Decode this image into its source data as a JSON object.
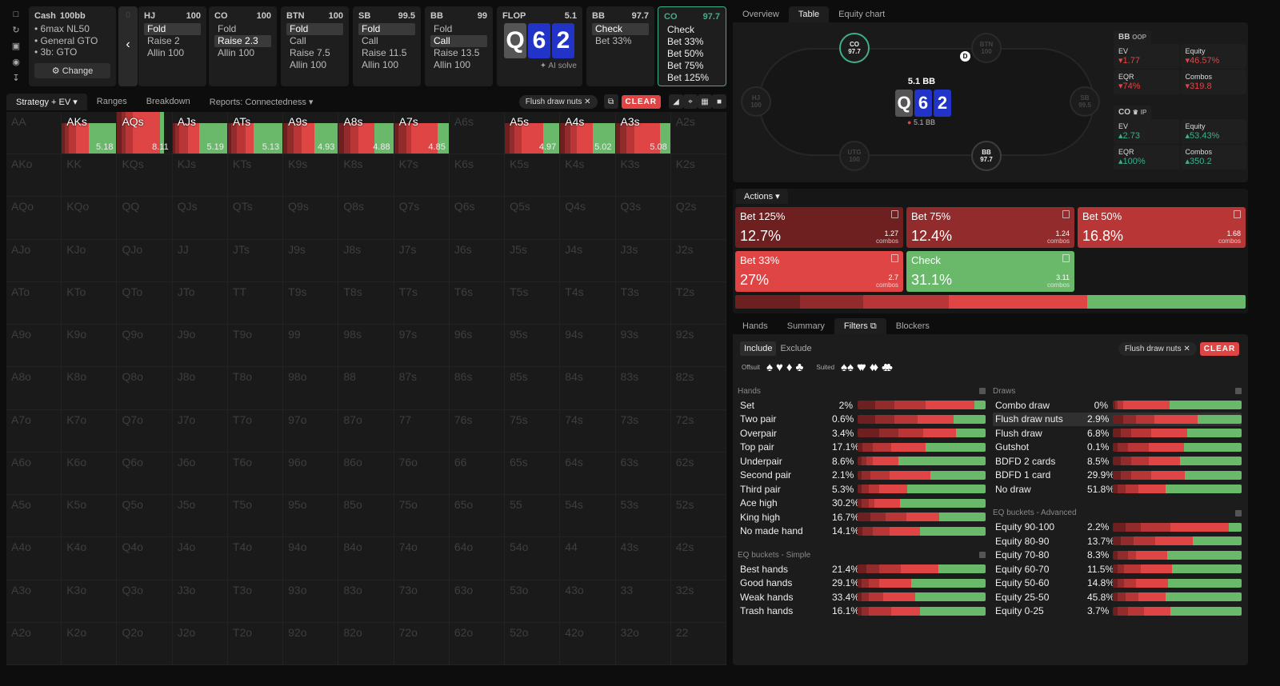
{
  "colors": {
    "bet125": "#6e1f1f",
    "bet75": "#922b2b",
    "bet50": "#b83636",
    "bet33": "#e04545",
    "check": "#6ab86a",
    "accent": "#3fae8e"
  },
  "sidebar_icons": [
    "bookmark-icon",
    "refresh-icon",
    "save-icon",
    "gamepad-icon",
    "collapse-icon"
  ],
  "game": {
    "title": "Cash",
    "stack": "100bb",
    "lines": [
      "• 6max NL50",
      "• General GTO",
      "• 3b: GTO"
    ],
    "change": "Change",
    "hidden_stack": "0"
  },
  "positions": [
    {
      "pos": "HJ",
      "stack": "100",
      "options": [
        "Fold",
        "Raise 2",
        "Allin 100"
      ],
      "sel": 0
    },
    {
      "pos": "CO",
      "stack": "100",
      "options": [
        "Fold",
        "Raise 2.3",
        "Allin 100"
      ],
      "sel": 1
    },
    {
      "pos": "BTN",
      "stack": "100",
      "options": [
        "Fold",
        "Call",
        "Raise 7.5",
        "Allin 100"
      ],
      "sel": 0
    },
    {
      "pos": "SB",
      "stack": "99.5",
      "options": [
        "Fold",
        "Call",
        "Raise 11.5",
        "Allin 100"
      ],
      "sel": 0
    },
    {
      "pos": "BB",
      "stack": "99",
      "options": [
        "Fold",
        "Call",
        "Raise 13.5",
        "Allin 100"
      ],
      "sel": 1
    }
  ],
  "flop": {
    "label": "FLOP",
    "pot": "5.1",
    "cards": [
      "Q",
      "6",
      "2"
    ],
    "ai": "AI solve"
  },
  "bb_node": {
    "pos": "BB",
    "stack": "97.7",
    "options": [
      "Check",
      "Bet 33%"
    ],
    "sel": 0
  },
  "co_node": {
    "pos": "CO",
    "stack": "97.7",
    "options": [
      "Check",
      "Bet 33%",
      "Bet 50%",
      "Bet 75%",
      "Bet 125%"
    ]
  },
  "toolbar": {
    "tabs": [
      "Strategy + EV",
      "Ranges",
      "Breakdown",
      "Reports: Connectedness"
    ],
    "filter_chip": "Flush draw nuts",
    "clear": "CLEAR"
  },
  "grid": [
    [
      "AA",
      "AKs",
      "AQs",
      "AJs",
      "ATs",
      "A9s",
      "A8s",
      "A7s",
      "A6s",
      "A5s",
      "A4s",
      "A3s",
      "A2s"
    ],
    [
      "AKo",
      "KK",
      "KQs",
      "KJs",
      "KTs",
      "K9s",
      "K8s",
      "K7s",
      "K6s",
      "K5s",
      "K4s",
      "K3s",
      "K2s"
    ],
    [
      "AQo",
      "KQo",
      "QQ",
      "QJs",
      "QTs",
      "Q9s",
      "Q8s",
      "Q7s",
      "Q6s",
      "Q5s",
      "Q4s",
      "Q3s",
      "Q2s"
    ],
    [
      "AJo",
      "KJo",
      "QJo",
      "JJ",
      "JTs",
      "J9s",
      "J8s",
      "J7s",
      "J6s",
      "J5s",
      "J4s",
      "J3s",
      "J2s"
    ],
    [
      "ATo",
      "KTo",
      "QTo",
      "JTo",
      "TT",
      "T9s",
      "T8s",
      "T7s",
      "T6s",
      "T5s",
      "T4s",
      "T3s",
      "T2s"
    ],
    [
      "A9o",
      "K9o",
      "Q9o",
      "J9o",
      "T9o",
      "99",
      "98s",
      "97s",
      "96s",
      "95s",
      "94s",
      "93s",
      "92s"
    ],
    [
      "A8o",
      "K8o",
      "Q8o",
      "J8o",
      "T8o",
      "98o",
      "88",
      "87s",
      "86s",
      "85s",
      "84s",
      "83s",
      "82s"
    ],
    [
      "A7o",
      "K7o",
      "Q7o",
      "J7o",
      "T7o",
      "97o",
      "87o",
      "77",
      "76s",
      "75s",
      "74s",
      "73s",
      "72s"
    ],
    [
      "A6o",
      "K6o",
      "Q6o",
      "J6o",
      "T6o",
      "96o",
      "86o",
      "76o",
      "66",
      "65s",
      "64s",
      "63s",
      "62s"
    ],
    [
      "A5o",
      "K5o",
      "Q5o",
      "J5o",
      "T5o",
      "95o",
      "85o",
      "75o",
      "65o",
      "55",
      "54s",
      "53s",
      "52s"
    ],
    [
      "A4o",
      "K4o",
      "Q4o",
      "J4o",
      "T4o",
      "94o",
      "84o",
      "74o",
      "64o",
      "54o",
      "44",
      "43s",
      "42s"
    ],
    [
      "A3o",
      "K3o",
      "Q3o",
      "J3o",
      "T3o",
      "93o",
      "83o",
      "73o",
      "63o",
      "53o",
      "43o",
      "33",
      "32s"
    ],
    [
      "A2o",
      "K2o",
      "Q2o",
      "J2o",
      "T2o",
      "92o",
      "82o",
      "72o",
      "62o",
      "52o",
      "42o",
      "32o",
      "22"
    ]
  ],
  "strategy": {
    "AKs": {
      "f": [
        6,
        7,
        13,
        24,
        50
      ],
      "ev": "5.18",
      "h": 0.8
    },
    "AQs": {
      "f": [
        8,
        8,
        12,
        50,
        8
      ],
      "ev": "8.11",
      "h": 1
    },
    "AJs": {
      "f": [
        5,
        7,
        17,
        20,
        51
      ],
      "ev": "5.19",
      "h": 0.8
    },
    "ATs": {
      "f": [
        6,
        10,
        16,
        15,
        53
      ],
      "ev": "5.13",
      "h": 0.8
    },
    "A9s": {
      "f": [
        7,
        12,
        15,
        23,
        43
      ],
      "ev": "4.93",
      "h": 0.8
    },
    "A8s": {
      "f": [
        10,
        12,
        14,
        30,
        34
      ],
      "ev": "4.88",
      "h": 0.8
    },
    "A7s": {
      "f": [
        8,
        14,
        10,
        48,
        20
      ],
      "ev": "4.85",
      "h": 0.8
    },
    "A5s": {
      "f": [
        8,
        9,
        14,
        40,
        29
      ],
      "ev": "4.97",
      "h": 0.8
    },
    "A4s": {
      "f": [
        8,
        10,
        12,
        30,
        40
      ],
      "ev": "5.02",
      "h": 0.8
    },
    "A3s": {
      "f": [
        8,
        12,
        14,
        48,
        18
      ],
      "ev": "5.08",
      "h": 0.8
    }
  },
  "table": {
    "tabs": [
      "Overview",
      "Table",
      "Equity chart"
    ],
    "active_tab": 1,
    "pot": "5.1 BB",
    "pot_chip": "5.1 BB",
    "dealer": "D",
    "seats": [
      {
        "pos": "CO",
        "stack": "97.7"
      },
      {
        "pos": "BTN",
        "stack": "100"
      },
      {
        "pos": "HJ",
        "stack": "100"
      },
      {
        "pos": "SB",
        "stack": "99.5"
      },
      {
        "pos": "UTG",
        "stack": "100"
      },
      {
        "pos": "BB",
        "stack": "97.7"
      }
    ],
    "oop": {
      "title": "BB",
      "tag": "OOP",
      "ev_l": "EV",
      "ev": "1.77",
      "eq_l": "Equity",
      "eq": "46.57%",
      "eqr_l": "EQR",
      "eqr": "74%",
      "co_l": "Combos",
      "co": "319.8"
    },
    "ip": {
      "title": "CO",
      "tag": "IP",
      "ev_l": "EV",
      "ev": "2.73",
      "eq_l": "Equity",
      "eq": "53.43%",
      "eqr_l": "EQR",
      "eqr": "100%",
      "co_l": "Combos",
      "co": "350.2"
    }
  },
  "actions": {
    "label": "Actions",
    "combos_label": "combos",
    "tiles": [
      {
        "name": "Bet 125%",
        "pct": "12.7%",
        "combos": "1.27",
        "color": "#6e1f1f",
        "value": 12.7
      },
      {
        "name": "Bet 75%",
        "pct": "12.4%",
        "combos": "1.24",
        "color": "#922b2b",
        "value": 12.4
      },
      {
        "name": "Bet 50%",
        "pct": "16.8%",
        "combos": "1.68",
        "color": "#b83636",
        "value": 16.8
      },
      {
        "name": "Bet 33%",
        "pct": "27%",
        "combos": "2.7",
        "color": "#e04545",
        "value": 27
      },
      {
        "name": "Check",
        "pct": "31.1%",
        "combos": "3.11",
        "color": "#6ab86a",
        "value": 31.1
      }
    ]
  },
  "bottom_tabs": [
    "Hands",
    "Summary",
    "Filters",
    "Blockers"
  ],
  "filters": {
    "include": "Include",
    "exclude": "Exclude",
    "offsuit": "Offsuit",
    "suited": "Suited",
    "chip": "Flush draw nuts",
    "clear": "CLEAR",
    "hands_title": "Hands",
    "hands": [
      {
        "l": "Set",
        "p": "2%",
        "f": [
          14,
          15,
          24,
          38,
          9
        ]
      },
      {
        "l": "Two pair",
        "p": "0.6%",
        "f": [
          14,
          15,
          18,
          28,
          25
        ]
      },
      {
        "l": "Overpair",
        "p": "3.4%",
        "f": [
          17,
          15,
          19,
          26,
          23
        ]
      },
      {
        "l": "Top pair",
        "p": "17.1%",
        "f": [
          4,
          8,
          14,
          27,
          47
        ]
      },
      {
        "l": "Underpair",
        "p": "8.6%",
        "f": [
          3,
          4,
          5,
          20,
          68
        ]
      },
      {
        "l": "Second pair",
        "p": "2.1%",
        "f": [
          3,
          7,
          15,
          32,
          43
        ]
      },
      {
        "l": "Third pair",
        "p": "5.3%",
        "f": [
          3,
          6,
          8,
          22,
          61
        ]
      },
      {
        "l": "Ace high",
        "p": "30.2%",
        "f": [
          3,
          6,
          4,
          20,
          67
        ]
      },
      {
        "l": "King high",
        "p": "16.7%",
        "f": [
          10,
          12,
          16,
          26,
          36
        ]
      },
      {
        "l": "No made hand",
        "p": "14.1%",
        "f": [
          4,
          8,
          13,
          24,
          51
        ]
      }
    ],
    "simple_title": "EQ buckets - Simple",
    "simple": [
      {
        "l": "Best hands",
        "p": "21.4%",
        "f": [
          7,
          10,
          17,
          29,
          37
        ]
      },
      {
        "l": "Good hands",
        "p": "29.1%",
        "f": [
          3,
          6,
          8,
          25,
          58
        ]
      },
      {
        "l": "Weak hands",
        "p": "33.4%",
        "f": [
          3,
          6,
          11,
          25,
          55
        ]
      },
      {
        "l": "Trash hands",
        "p": "16.1%",
        "f": [
          3,
          6,
          17,
          23,
          51
        ]
      }
    ],
    "draws_title": "Draws",
    "draws": [
      {
        "l": "Combo draw",
        "p": "0%",
        "f": [
          2,
          2,
          4,
          36,
          56
        ]
      },
      {
        "l": "Flush draw nuts",
        "p": "2.9%",
        "f": [
          8,
          10,
          14,
          34,
          34
        ],
        "hl": true
      },
      {
        "l": "Flush draw",
        "p": "6.8%",
        "f": [
          6,
          8,
          16,
          28,
          42
        ]
      },
      {
        "l": "Gutshot",
        "p": "0.1%",
        "f": [
          4,
          8,
          16,
          27,
          45
        ]
      },
      {
        "l": "BDFD 2 cards",
        "p": "8.5%",
        "f": [
          6,
          8,
          14,
          24,
          48
        ]
      },
      {
        "l": "BDFD 1 card",
        "p": "29.9%",
        "f": [
          6,
          8,
          16,
          26,
          44
        ]
      },
      {
        "l": "No draw",
        "p": "51.8%",
        "f": [
          4,
          6,
          10,
          21,
          59
        ]
      }
    ],
    "adv_title": "EQ buckets - Advanced",
    "adv": [
      {
        "l": "Equity 90-100",
        "p": "2.2%",
        "f": [
          10,
          12,
          23,
          45,
          10
        ]
      },
      {
        "l": "Equity 80-90",
        "p": "13.7%",
        "f": [
          6,
          10,
          17,
          29,
          38
        ]
      },
      {
        "l": "Equity 70-80",
        "p": "8.3%",
        "f": [
          4,
          8,
          6,
          24,
          58
        ]
      },
      {
        "l": "Equity 60-70",
        "p": "11.5%",
        "f": [
          4,
          5,
          13,
          24,
          54
        ]
      },
      {
        "l": "Equity 50-60",
        "p": "14.8%",
        "f": [
          4,
          5,
          9,
          25,
          57
        ]
      },
      {
        "l": "Equity 25-50",
        "p": "45.8%",
        "f": [
          4,
          6,
          10,
          21,
          59
        ]
      },
      {
        "l": "Equity 0-25",
        "p": "3.7%",
        "f": [
          4,
          8,
          12,
          21,
          55
        ]
      }
    ]
  }
}
